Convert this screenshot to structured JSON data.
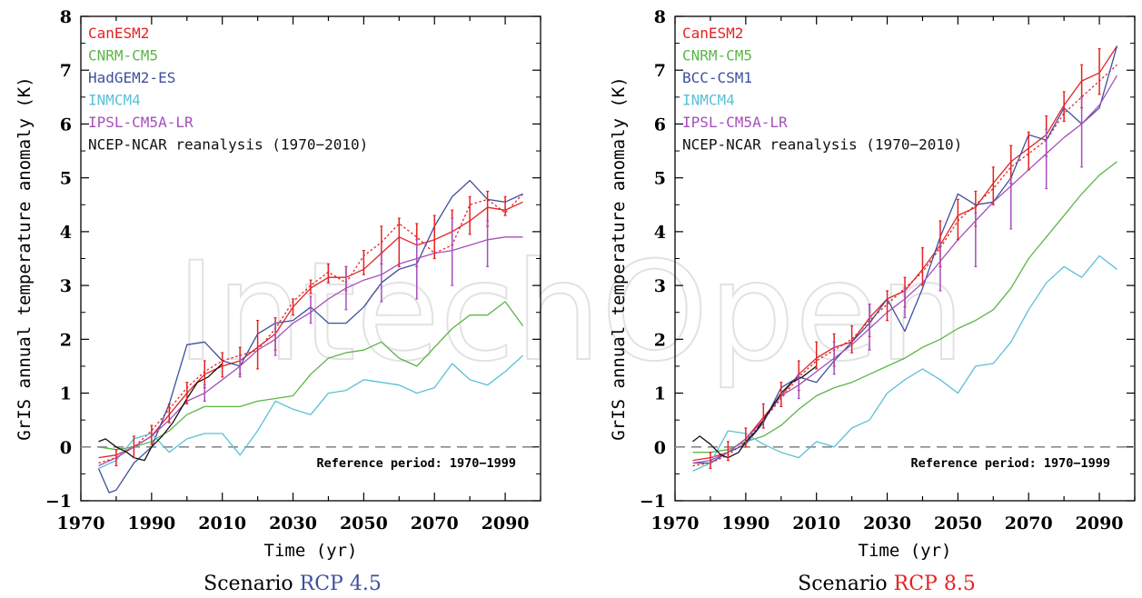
{
  "watermark": "IntechOpen",
  "chart_data": [
    {
      "type": "line",
      "title": "",
      "xlabel": "Time (yr)",
      "ylabel": "GrIS annual temperature anomaly (K)",
      "xlim": [
        1970,
        2100
      ],
      "ylim": [
        -1,
        8
      ],
      "xticks": [
        1970,
        1990,
        2010,
        2030,
        2050,
        2070,
        2090
      ],
      "yticks": [
        -1,
        0,
        1,
        2,
        3,
        4,
        5,
        6,
        7,
        8
      ],
      "grid": false,
      "legend_position": "top-left",
      "scenario_prefix": "Scenario ",
      "scenario_name": "RCP 4.5",
      "scenario_color": "#3f4f9e",
      "reference_line": {
        "y": 0,
        "label": "Reference period: 1970−1999"
      },
      "series": [
        {
          "name": "CanESM2",
          "color": "#e52222",
          "style": "solid",
          "x": [
            1975,
            1980,
            1985,
            1990,
            1995,
            2000,
            2005,
            2010,
            2015,
            2020,
            2025,
            2030,
            2035,
            2040,
            2045,
            2050,
            2055,
            2060,
            2065,
            2070,
            2075,
            2080,
            2085,
            2090,
            2095
          ],
          "y": [
            -0.2,
            -0.15,
            0.0,
            0.2,
            0.6,
            1.0,
            1.35,
            1.5,
            1.6,
            1.85,
            2.1,
            2.6,
            2.95,
            3.15,
            3.15,
            3.3,
            3.6,
            3.9,
            3.75,
            3.85,
            4.0,
            4.2,
            4.45,
            4.4,
            4.55
          ]
        },
        {
          "name": "CanESM2 (dotted)",
          "color": "#e52222",
          "style": "dotted",
          "x": [
            1975,
            1980,
            1985,
            1990,
            1995,
            2000,
            2005,
            2010,
            2015,
            2020,
            2025,
            2030,
            2035,
            2040,
            2045,
            2050,
            2055,
            2060,
            2065,
            2070,
            2075,
            2080,
            2085,
            2090,
            2095
          ],
          "y": [
            -0.3,
            -0.2,
            0.0,
            0.3,
            0.7,
            1.1,
            1.4,
            1.6,
            1.7,
            1.8,
            2.2,
            2.7,
            3.0,
            3.25,
            3.05,
            3.55,
            3.8,
            4.15,
            3.9,
            3.6,
            3.75,
            4.5,
            4.6,
            4.35,
            4.7
          ]
        },
        {
          "name": "CNRM-CM5",
          "color": "#5cb548",
          "style": "solid",
          "x": [
            1975,
            1980,
            1985,
            1990,
            1995,
            2000,
            2005,
            2010,
            2015,
            2020,
            2025,
            2030,
            2035,
            2040,
            2045,
            2050,
            2055,
            2060,
            2065,
            2070,
            2075,
            2080,
            2085,
            2090,
            2095
          ],
          "y": [
            0.0,
            -0.05,
            0.0,
            0.1,
            0.3,
            0.6,
            0.75,
            0.75,
            0.75,
            0.85,
            0.9,
            0.95,
            1.35,
            1.65,
            1.75,
            1.8,
            1.95,
            1.65,
            1.5,
            1.85,
            2.2,
            2.45,
            2.45,
            2.7,
            2.25
          ]
        },
        {
          "name": "HadGEM2-ES",
          "color": "#3f4f9e",
          "style": "solid",
          "x": [
            1975,
            1978,
            1980,
            1985,
            1990,
            1995,
            2000,
            2005,
            2010,
            2015,
            2020,
            2025,
            2030,
            2035,
            2040,
            2045,
            2050,
            2055,
            2060,
            2065,
            2070,
            2075,
            2080,
            2085,
            2090,
            2095
          ],
          "y": [
            -0.4,
            -0.85,
            -0.8,
            -0.3,
            0.0,
            0.8,
            1.9,
            1.95,
            1.6,
            1.5,
            2.1,
            2.3,
            2.35,
            2.6,
            2.3,
            2.3,
            2.6,
            3.05,
            3.3,
            3.4,
            4.1,
            4.65,
            4.95,
            4.6,
            4.55,
            4.7
          ]
        },
        {
          "name": "INMCM4",
          "color": "#5bc0d6",
          "style": "solid",
          "x": [
            1975,
            1980,
            1985,
            1990,
            1995,
            2000,
            2005,
            2010,
            2015,
            2020,
            2025,
            2030,
            2035,
            2040,
            2045,
            2050,
            2055,
            2060,
            2065,
            2070,
            2075,
            2080,
            2085,
            2090,
            2095
          ],
          "y": [
            -0.4,
            -0.25,
            0.15,
            0.25,
            -0.1,
            0.15,
            0.25,
            0.25,
            -0.15,
            0.3,
            0.85,
            0.7,
            0.6,
            1.0,
            1.05,
            1.25,
            1.2,
            1.15,
            1.0,
            1.1,
            1.55,
            1.25,
            1.15,
            1.4,
            1.7
          ]
        },
        {
          "name": "IPSL-CM5A-LR",
          "color": "#a64fbb",
          "style": "solid",
          "x": [
            1975,
            1980,
            1985,
            1990,
            1995,
            2000,
            2005,
            2010,
            2015,
            2020,
            2025,
            2030,
            2035,
            2040,
            2045,
            2050,
            2055,
            2060,
            2065,
            2070,
            2075,
            2080,
            2085,
            2090,
            2095
          ],
          "y": [
            -0.35,
            -0.2,
            0.0,
            0.2,
            0.5,
            0.85,
            1.0,
            1.25,
            1.5,
            1.8,
            2.0,
            2.3,
            2.5,
            2.75,
            2.95,
            3.1,
            3.2,
            3.4,
            3.5,
            3.6,
            3.65,
            3.75,
            3.85,
            3.9,
            3.9
          ]
        },
        {
          "name": "NCEP-NCAR reanalysis (1970−2010)",
          "color": "#111111",
          "style": "solid",
          "x": [
            1975,
            1977,
            1980,
            1983,
            1985,
            1988,
            1990,
            1993,
            1996,
            2000,
            2003,
            2006,
            2010
          ],
          "y": [
            0.1,
            0.15,
            0.0,
            -0.1,
            -0.2,
            -0.25,
            0.0,
            0.2,
            0.45,
            0.9,
            1.2,
            1.3,
            1.55
          ]
        }
      ],
      "error_bars": [
        {
          "color": "#e52222",
          "x": [
            1980,
            1985,
            1990,
            1995,
            2000,
            2005,
            2010,
            2015,
            2020,
            2025,
            2030,
            2035,
            2040,
            2045,
            2050,
            2055,
            2060,
            2065,
            2070,
            2075,
            2080,
            2085,
            2090
          ],
          "low": [
            -0.35,
            -0.2,
            0.05,
            0.45,
            0.8,
            1.1,
            1.3,
            1.35,
            1.45,
            1.8,
            2.45,
            2.85,
            3.05,
            2.9,
            3.2,
            3.4,
            3.35,
            3.35,
            3.5,
            3.75,
            3.95,
            4.1,
            4.3
          ],
          "high": [
            -0.05,
            0.2,
            0.4,
            0.8,
            1.2,
            1.6,
            1.75,
            1.85,
            2.35,
            2.4,
            2.75,
            3.1,
            3.4,
            3.35,
            3.65,
            4.1,
            4.25,
            4.15,
            4.3,
            4.4,
            4.65,
            4.75,
            4.65
          ]
        },
        {
          "color": "#a64fbb",
          "x": [
            2005,
            2015,
            2025,
            2035,
            2045,
            2055,
            2065,
            2075,
            2085
          ],
          "low": [
            0.85,
            1.3,
            1.7,
            2.3,
            2.55,
            2.7,
            2.75,
            3.0,
            3.35
          ],
          "high": [
            1.15,
            1.7,
            2.3,
            2.8,
            3.35,
            3.6,
            3.85,
            4.25,
            4.2
          ]
        }
      ]
    },
    {
      "type": "line",
      "title": "",
      "xlabel": "Time (yr)",
      "ylabel": "GrIS annual temperature anomaly (K)",
      "xlim": [
        1970,
        2100
      ],
      "ylim": [
        -1,
        8
      ],
      "xticks": [
        1970,
        1990,
        2010,
        2030,
        2050,
        2070,
        2090
      ],
      "yticks": [
        -1,
        0,
        1,
        2,
        3,
        4,
        5,
        6,
        7,
        8
      ],
      "grid": false,
      "legend_position": "top-left",
      "scenario_prefix": "Scenario ",
      "scenario_name": "RCP 8.5",
      "scenario_color": "#e52222",
      "reference_line": {
        "y": 0,
        "label": "Reference period: 1970−1999"
      },
      "series": [
        {
          "name": "CanESM2",
          "color": "#e52222",
          "style": "solid",
          "x": [
            1975,
            1980,
            1985,
            1990,
            1995,
            2000,
            2005,
            2010,
            2015,
            2020,
            2025,
            2030,
            2035,
            2040,
            2045,
            2050,
            2055,
            2060,
            2065,
            2070,
            2075,
            2080,
            2085,
            2090,
            2095
          ],
          "y": [
            -0.25,
            -0.2,
            -0.1,
            0.15,
            0.55,
            0.95,
            1.35,
            1.65,
            1.85,
            1.95,
            2.4,
            2.75,
            2.9,
            3.3,
            3.75,
            4.3,
            4.45,
            4.9,
            5.3,
            5.55,
            5.8,
            6.35,
            6.8,
            6.95,
            7.45
          ]
        },
        {
          "name": "CanESM2 (dotted)",
          "color": "#e52222",
          "style": "dotted",
          "x": [
            1975,
            1980,
            1985,
            1990,
            1995,
            2000,
            2005,
            2010,
            2015,
            2020,
            2025,
            2030,
            2035,
            2040,
            2045,
            2050,
            2055,
            2060,
            2065,
            2070,
            2075,
            2080,
            2085,
            2090,
            2095
          ],
          "y": [
            -0.35,
            -0.3,
            -0.15,
            0.1,
            0.5,
            0.9,
            1.3,
            1.6,
            1.8,
            2.0,
            2.35,
            2.65,
            2.95,
            3.25,
            3.7,
            4.2,
            4.5,
            4.8,
            5.2,
            5.45,
            5.7,
            6.2,
            6.5,
            6.8,
            7.1
          ]
        },
        {
          "name": "CNRM-CM5",
          "color": "#5cb548",
          "style": "solid",
          "x": [
            1975,
            1980,
            1985,
            1990,
            1995,
            2000,
            2005,
            2010,
            2015,
            2020,
            2025,
            2030,
            2035,
            2040,
            2045,
            2050,
            2055,
            2060,
            2065,
            2070,
            2075,
            2080,
            2085,
            2090,
            2095
          ],
          "y": [
            -0.1,
            -0.1,
            -0.05,
            0.1,
            0.2,
            0.4,
            0.7,
            0.95,
            1.1,
            1.2,
            1.35,
            1.5,
            1.65,
            1.85,
            2.0,
            2.2,
            2.35,
            2.55,
            2.95,
            3.5,
            3.9,
            4.3,
            4.7,
            5.05,
            5.3
          ]
        },
        {
          "name": "BCC-CSM1",
          "color": "#3f4f9e",
          "style": "solid",
          "x": [
            1975,
            1980,
            1985,
            1990,
            1995,
            2000,
            2005,
            2010,
            2015,
            2020,
            2025,
            2030,
            2035,
            2040,
            2045,
            2050,
            2055,
            2060,
            2065,
            2070,
            2075,
            2080,
            2085,
            2090,
            2095
          ],
          "y": [
            -0.3,
            -0.3,
            -0.1,
            0.05,
            0.45,
            1.1,
            1.3,
            1.2,
            1.6,
            1.95,
            2.3,
            2.75,
            2.15,
            2.95,
            3.9,
            4.7,
            4.5,
            4.55,
            5.0,
            5.8,
            5.7,
            6.3,
            6.0,
            6.3,
            7.45
          ]
        },
        {
          "name": "INMCM4",
          "color": "#5bc0d6",
          "style": "solid",
          "x": [
            1975,
            1980,
            1985,
            1990,
            1995,
            2000,
            2005,
            2010,
            2015,
            2020,
            2025,
            2030,
            2035,
            2040,
            2045,
            2050,
            2055,
            2060,
            2065,
            2070,
            2075,
            2080,
            2085,
            2090,
            2095
          ],
          "y": [
            -0.45,
            -0.3,
            0.3,
            0.25,
            0.05,
            -0.1,
            -0.2,
            0.1,
            0.0,
            0.35,
            0.5,
            1.0,
            1.25,
            1.45,
            1.25,
            1.0,
            1.5,
            1.55,
            1.95,
            2.55,
            3.05,
            3.35,
            3.15,
            3.55,
            3.3
          ]
        },
        {
          "name": "IPSL-CM5A-LR",
          "color": "#a64fbb",
          "style": "solid",
          "x": [
            1975,
            1980,
            1985,
            1990,
            1995,
            2000,
            2005,
            2010,
            2015,
            2020,
            2025,
            2030,
            2035,
            2040,
            2045,
            2050,
            2055,
            2060,
            2065,
            2070,
            2075,
            2080,
            2085,
            2090,
            2095
          ],
          "y": [
            -0.3,
            -0.25,
            -0.1,
            0.15,
            0.5,
            0.95,
            1.15,
            1.4,
            1.65,
            1.9,
            2.2,
            2.5,
            2.75,
            3.05,
            3.45,
            3.85,
            4.2,
            4.55,
            4.85,
            5.15,
            5.45,
            5.75,
            6.0,
            6.35,
            6.9
          ]
        },
        {
          "name": "NCEP-NCAR reanalysis (1970−2010)",
          "color": "#111111",
          "style": "solid",
          "x": [
            1975,
            1977,
            1980,
            1983,
            1985,
            1988,
            1990,
            1993,
            1996,
            2000,
            2003,
            2006,
            2010
          ],
          "y": [
            0.1,
            0.2,
            0.05,
            -0.15,
            -0.2,
            -0.1,
            0.1,
            0.3,
            0.6,
            1.0,
            1.2,
            1.3,
            1.5
          ]
        }
      ],
      "error_bars": [
        {
          "color": "#e52222",
          "x": [
            1980,
            1985,
            1990,
            1995,
            2000,
            2005,
            2010,
            2015,
            2020,
            2025,
            2030,
            2035,
            2040,
            2045,
            2050,
            2055,
            2060,
            2065,
            2070,
            2075,
            2080,
            2085,
            2090
          ],
          "low": [
            -0.4,
            -0.25,
            0.0,
            0.35,
            0.75,
            1.05,
            1.45,
            1.5,
            1.75,
            2.05,
            2.35,
            2.6,
            3.0,
            3.35,
            3.85,
            4.1,
            4.5,
            4.9,
            5.15,
            5.4,
            6.05,
            6.3,
            6.55
          ],
          "high": [
            -0.1,
            0.1,
            0.35,
            0.8,
            1.2,
            1.6,
            1.95,
            2.1,
            2.25,
            2.65,
            2.9,
            3.15,
            3.7,
            4.2,
            4.6,
            4.75,
            5.2,
            5.6,
            5.85,
            6.15,
            6.6,
            7.1,
            7.4
          ]
        },
        {
          "color": "#a64fbb",
          "x": [
            2005,
            2015,
            2025,
            2035,
            2045,
            2055,
            2065,
            2075,
            2085
          ],
          "low": [
            0.9,
            1.35,
            1.8,
            2.4,
            2.9,
            3.35,
            4.05,
            4.8,
            5.2
          ],
          "high": [
            1.35,
            1.95,
            2.65,
            2.95,
            3.8,
            4.35,
            5.0,
            5.9,
            6.5
          ]
        }
      ]
    }
  ]
}
